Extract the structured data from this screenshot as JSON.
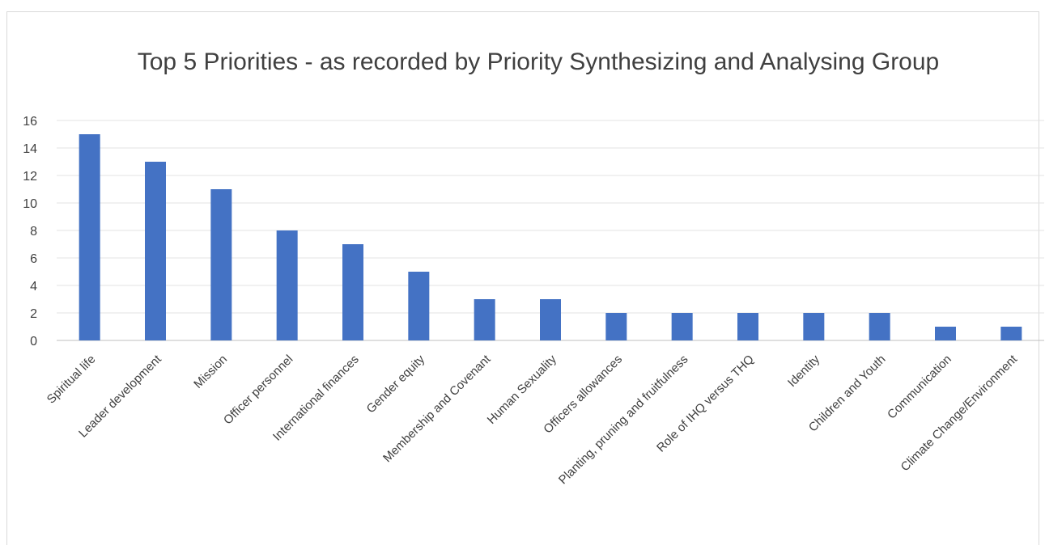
{
  "chart_data": {
    "type": "bar",
    "title": "Top 5 Priorities - as recorded by Priority Synthesizing and Analysing Group",
    "xlabel": "",
    "ylabel": "",
    "ylim": [
      0,
      16
    ],
    "yticks": [
      0,
      2,
      4,
      6,
      8,
      10,
      12,
      14,
      16
    ],
    "grid": true,
    "bar_color": "#4472c4",
    "categories": [
      "Spiritual life",
      "Leader development",
      "Mission",
      "Officer personnel",
      "International finances",
      "Gender equity",
      "Membership and Covenant",
      "Human Sexuality",
      "Officers allowances",
      "Planting, pruning and fruitfulness",
      "Role of IHQ versus THQ",
      "Identity",
      "Children and Youth",
      "Communication",
      "Climate Change/Environment"
    ],
    "values": [
      15,
      13,
      11,
      8,
      7,
      5,
      3,
      3,
      2,
      2,
      2,
      2,
      2,
      1,
      1
    ]
  }
}
